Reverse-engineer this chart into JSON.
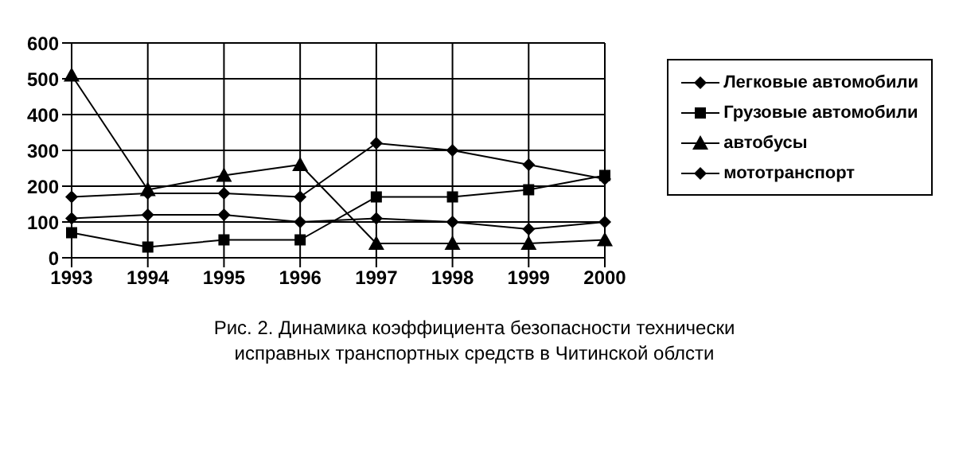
{
  "chart_data": {
    "type": "line",
    "categories": [
      "1993",
      "1994",
      "1995",
      "1996",
      "1997",
      "1998",
      "1999",
      "2000"
    ],
    "series": [
      {
        "name": "Легковые автомобили",
        "color": "#000000",
        "marker": "diamond",
        "values": [
          170,
          180,
          180,
          170,
          320,
          300,
          260,
          220
        ]
      },
      {
        "name": "Грузовые автомобили",
        "color": "#000000",
        "marker": "square",
        "values": [
          70,
          30,
          50,
          50,
          170,
          170,
          190,
          230
        ]
      },
      {
        "name": "автобусы",
        "color": "#000000",
        "marker": "triangle",
        "values": [
          510,
          190,
          230,
          260,
          40,
          40,
          40,
          50
        ]
      },
      {
        "name": "мототранспорт",
        "color": "#000000",
        "marker": "diamond",
        "values": [
          110,
          120,
          120,
          100,
          110,
          100,
          80,
          100
        ]
      }
    ],
    "ylim": [
      0,
      600
    ],
    "yticks": [
      0,
      100,
      200,
      300,
      400,
      500,
      600
    ],
    "grid": true,
    "legend": "right",
    "line_style": "solid",
    "annotations": [
      "Рис. 2. Динамика коэффициента безопасности технически исправных транспортных средств в Читинской облсти"
    ]
  }
}
